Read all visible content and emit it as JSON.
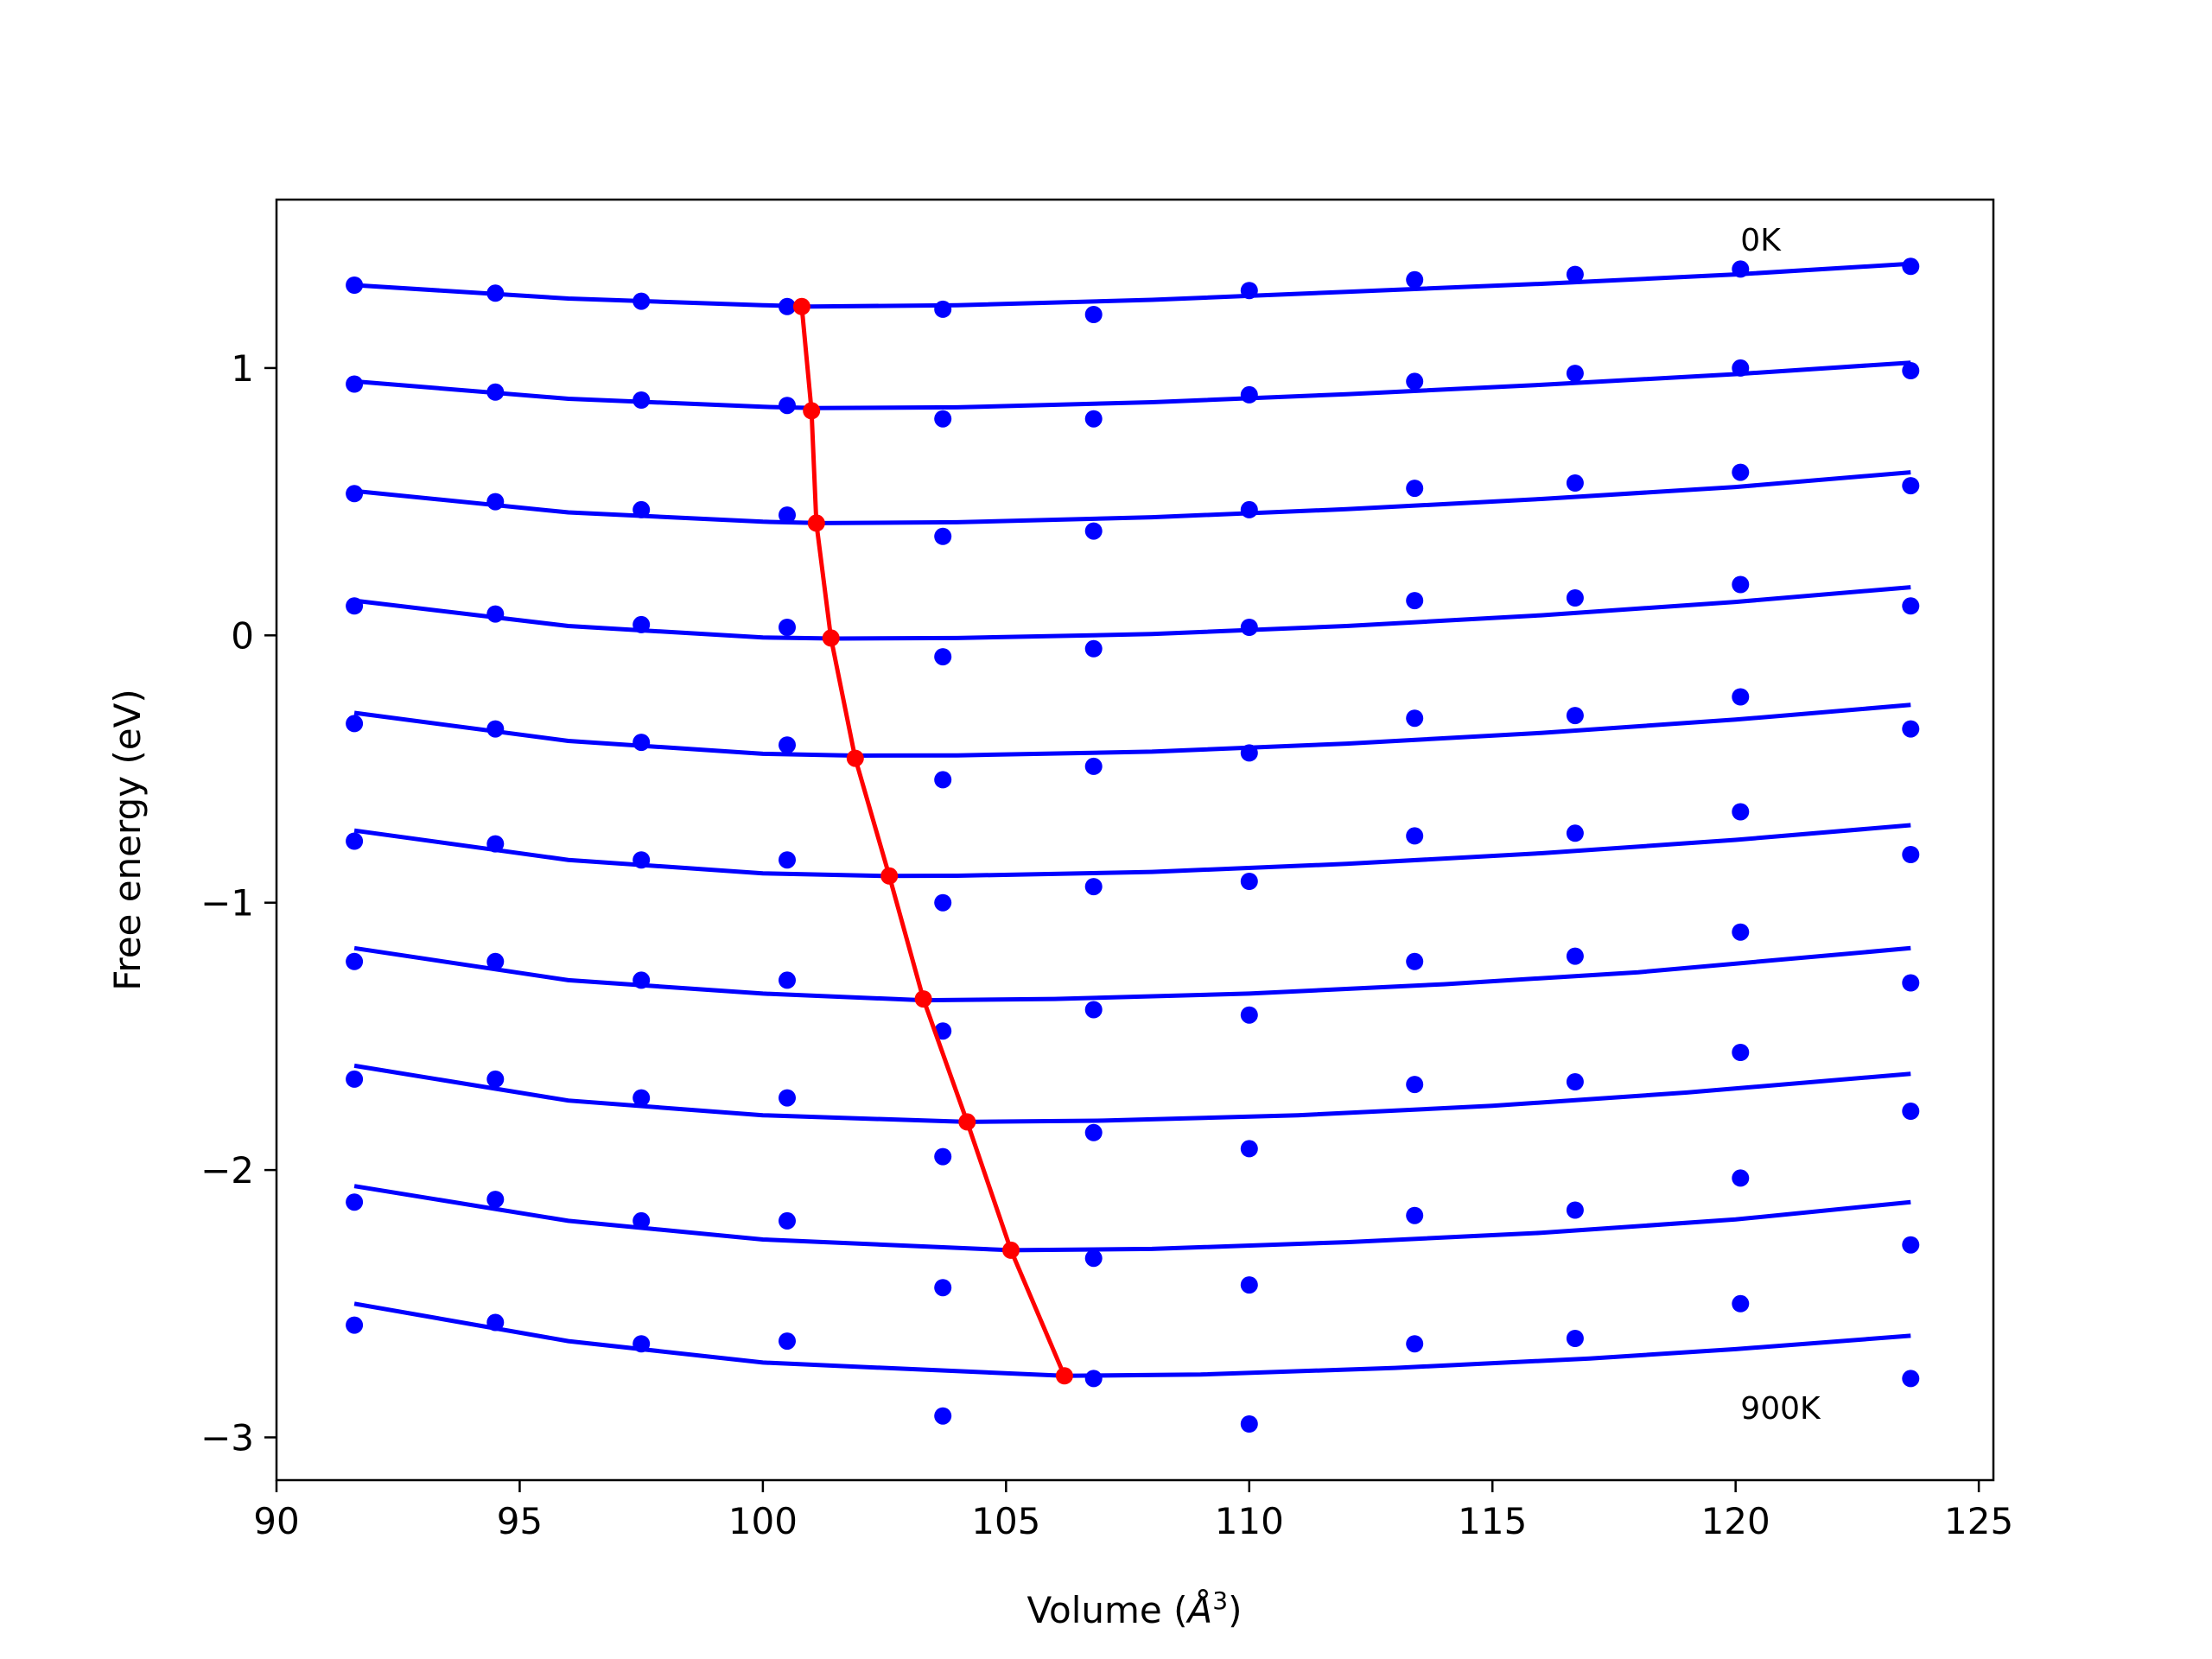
{
  "chart_data": {
    "type": "line",
    "xlabel": "Volume (",
    "xlabel_symbol": "Å",
    "xlabel_exp": "3",
    "xlabel_close": ")",
    "ylabel": "Free energy (eV)",
    "xlim": [
      90,
      125.3
    ],
    "ylim": [
      -3.16,
      1.63
    ],
    "xticks": [
      90,
      95,
      100,
      105,
      110,
      115,
      120,
      125
    ],
    "yticks": [
      -3,
      -2,
      -1,
      0,
      1
    ],
    "ytick_labels": [
      "−3",
      "−2",
      "−1",
      "0",
      "1"
    ],
    "grid": false,
    "annotations": [
      {
        "text": "0K",
        "x": 120.1,
        "y": 1.44
      },
      {
        "text": "900K",
        "x": 120.1,
        "y": -2.93
      }
    ],
    "x": [
      91.6,
      94.5,
      97.5,
      100.5,
      103.7,
      106.8,
      110.0,
      113.4,
      116.7,
      120.1,
      123.6
    ],
    "series": [
      {
        "points": [
          1.31,
          1.28,
          1.25,
          1.23,
          1.22,
          1.2,
          1.29,
          1.33,
          1.35,
          1.37,
          1.38
        ],
        "fit": [
          [
            91.6,
            1.31
          ],
          [
            96,
            1.26
          ],
          [
            100,
            1.235
          ],
          [
            101,
            1.23
          ],
          [
            104,
            1.235
          ],
          [
            108,
            1.255
          ],
          [
            112,
            1.285
          ],
          [
            116,
            1.315
          ],
          [
            120,
            1.35
          ],
          [
            123.6,
            1.39
          ]
        ]
      },
      {
        "points": [
          0.94,
          0.91,
          0.88,
          0.86,
          0.81,
          0.81,
          0.9,
          0.95,
          0.98,
          1.0,
          0.99
        ],
        "fit": [
          [
            91.6,
            0.95
          ],
          [
            96,
            0.885
          ],
          [
            100,
            0.855
          ],
          [
            101.1,
            0.85
          ],
          [
            104,
            0.853
          ],
          [
            108,
            0.872
          ],
          [
            112,
            0.902
          ],
          [
            116,
            0.937
          ],
          [
            120,
            0.977
          ],
          [
            123.6,
            1.02
          ]
        ]
      },
      {
        "points": [
          0.53,
          0.5,
          0.47,
          0.45,
          0.37,
          0.39,
          0.47,
          0.55,
          0.57,
          0.61,
          0.56
        ],
        "fit": [
          [
            91.6,
            0.54
          ],
          [
            96,
            0.46
          ],
          [
            100,
            0.425
          ],
          [
            101.2,
            0.42
          ],
          [
            104,
            0.423
          ],
          [
            108,
            0.442
          ],
          [
            112,
            0.472
          ],
          [
            116,
            0.51
          ],
          [
            120,
            0.555
          ],
          [
            123.6,
            0.61
          ]
        ]
      },
      {
        "points": [
          0.11,
          0.08,
          0.04,
          0.03,
          -0.08,
          -0.05,
          0.03,
          0.13,
          0.14,
          0.19,
          0.11
        ],
        "fit": [
          [
            91.6,
            0.13
          ],
          [
            96,
            0.035
          ],
          [
            100,
            -0.008
          ],
          [
            101.5,
            -0.012
          ],
          [
            104,
            -0.01
          ],
          [
            108,
            0.005
          ],
          [
            112,
            0.035
          ],
          [
            116,
            0.075
          ],
          [
            120,
            0.125
          ],
          [
            123.6,
            0.18
          ]
        ]
      },
      {
        "points": [
          -0.33,
          -0.35,
          -0.4,
          -0.41,
          -0.54,
          -0.49,
          -0.44,
          -0.31,
          -0.3,
          -0.23,
          -0.35
        ],
        "fit": [
          [
            91.6,
            -0.29
          ],
          [
            96,
            -0.395
          ],
          [
            100,
            -0.443
          ],
          [
            101.9,
            -0.45
          ],
          [
            104,
            -0.449
          ],
          [
            108,
            -0.435
          ],
          [
            112,
            -0.405
          ],
          [
            116,
            -0.365
          ],
          [
            120,
            -0.315
          ],
          [
            123.6,
            -0.26
          ]
        ]
      },
      {
        "points": [
          -0.77,
          -0.78,
          -0.84,
          -0.84,
          -1.0,
          -0.94,
          -0.92,
          -0.75,
          -0.74,
          -0.66,
          -0.82
        ],
        "fit": [
          [
            91.6,
            -0.73
          ],
          [
            96,
            -0.84
          ],
          [
            100,
            -0.89
          ],
          [
            102.5,
            -0.9
          ],
          [
            104,
            -0.899
          ],
          [
            108,
            -0.885
          ],
          [
            112,
            -0.855
          ],
          [
            116,
            -0.815
          ],
          [
            120,
            -0.765
          ],
          [
            123.6,
            -0.71
          ]
        ]
      },
      {
        "points": [
          -1.22,
          -1.22,
          -1.29,
          -1.29,
          -1.48,
          -1.4,
          -1.42,
          -1.22,
          -1.2,
          -1.11,
          -1.3
        ],
        "fit": [
          [
            91.6,
            -1.17
          ],
          [
            96,
            -1.29
          ],
          [
            100,
            -1.34
          ],
          [
            103.3,
            -1.365
          ],
          [
            106,
            -1.36
          ],
          [
            110,
            -1.34
          ],
          [
            114,
            -1.305
          ],
          [
            118,
            -1.26
          ],
          [
            123.6,
            -1.17
          ]
        ]
      },
      {
        "points": [
          -1.66,
          -1.66,
          -1.73,
          -1.73,
          -1.95,
          -1.86,
          -1.92,
          -1.68,
          -1.67,
          -1.56,
          -1.78
        ],
        "fit": [
          [
            91.6,
            -1.61
          ],
          [
            96,
            -1.74
          ],
          [
            100,
            -1.795
          ],
          [
            104.2,
            -1.82
          ],
          [
            107,
            -1.815
          ],
          [
            111,
            -1.795
          ],
          [
            115,
            -1.76
          ],
          [
            119,
            -1.71
          ],
          [
            123.6,
            -1.64
          ]
        ]
      },
      {
        "points": [
          -2.12,
          -2.11,
          -2.19,
          -2.19,
          -2.44,
          -2.33,
          -2.43,
          -2.17,
          -2.15,
          -2.03,
          -2.28
        ],
        "fit": [
          [
            91.6,
            -2.06
          ],
          [
            96,
            -2.19
          ],
          [
            100,
            -2.26
          ],
          [
            105.1,
            -2.3
          ],
          [
            108,
            -2.295
          ],
          [
            112,
            -2.27
          ],
          [
            116,
            -2.235
          ],
          [
            120,
            -2.185
          ],
          [
            123.6,
            -2.12
          ]
        ]
      },
      {
        "points": [
          -2.58,
          -2.57,
          -2.65,
          -2.64,
          -2.92,
          -2.78,
          -2.95,
          -2.65,
          -2.63,
          -2.5,
          -2.78
        ],
        "fit": [
          [
            91.6,
            -2.5
          ],
          [
            96,
            -2.64
          ],
          [
            100,
            -2.72
          ],
          [
            106.2,
            -2.77
          ],
          [
            109,
            -2.765
          ],
          [
            113,
            -2.74
          ],
          [
            117,
            -2.705
          ],
          [
            120,
            -2.67
          ],
          [
            123.6,
            -2.62
          ]
        ]
      }
    ],
    "minima": {
      "x": [
        100.8,
        101.0,
        101.1,
        101.4,
        101.9,
        102.6,
        103.3,
        104.2,
        105.1,
        106.2
      ],
      "y": [
        1.23,
        0.84,
        0.42,
        -0.01,
        -0.46,
        -0.9,
        -1.36,
        -1.82,
        -2.3,
        -2.77
      ]
    },
    "colors": {
      "series": "#0000ff",
      "minima": "#ff0000",
      "axes": "#000000"
    }
  }
}
